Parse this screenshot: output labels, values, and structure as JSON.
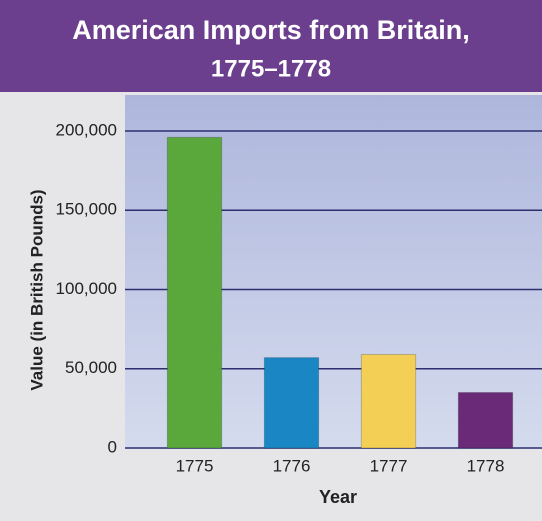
{
  "chart_data": {
    "type": "bar",
    "title": "American Imports from Britain,",
    "subtitle": "1775–1778",
    "categories": [
      "1775",
      "1776",
      "1777",
      "1778"
    ],
    "values": [
      196000,
      57000,
      59000,
      35000
    ],
    "colors": [
      "#5aa83c",
      "#1b86c4",
      "#f3cf55",
      "#6a2a78"
    ],
    "ylim": [
      0,
      200000
    ],
    "yticks": [
      0,
      {
        "value": 50000,
        "label": "50,000"
      },
      {
        "value": 100000,
        "label": "100,000"
      },
      {
        "value": 150000,
        "label": "150,000"
      },
      {
        "value": 200000,
        "label": "200,000"
      }
    ],
    "ylabel": "Value (in British Pounds)",
    "xlabel": "Year",
    "grid": true
  }
}
